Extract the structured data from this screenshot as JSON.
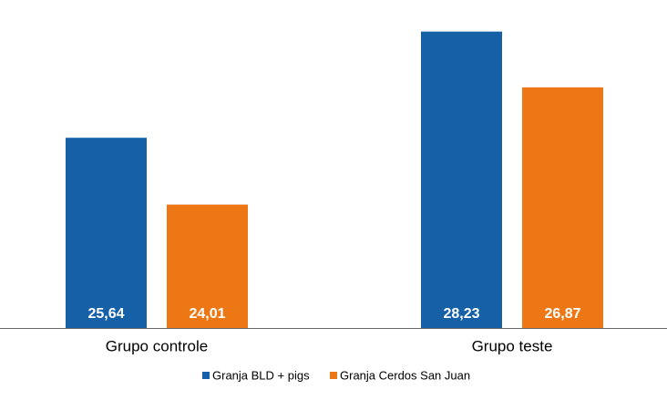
{
  "chart_data": {
    "type": "bar",
    "categories": [
      "Grupo controle",
      "Grupo teste"
    ],
    "series": [
      {
        "name": "Granja BLD + pigs",
        "color": "#1660a8",
        "values": [
          25.64,
          28.23
        ],
        "value_labels": [
          "25,64",
          "28,23"
        ]
      },
      {
        "name": "Granja Cerdos San Juan",
        "color": "#ec7714",
        "values": [
          24.01,
          26.87
        ],
        "value_labels": [
          "24,01",
          "26,87"
        ]
      }
    ],
    "ylim": [
      21,
      29
    ]
  }
}
